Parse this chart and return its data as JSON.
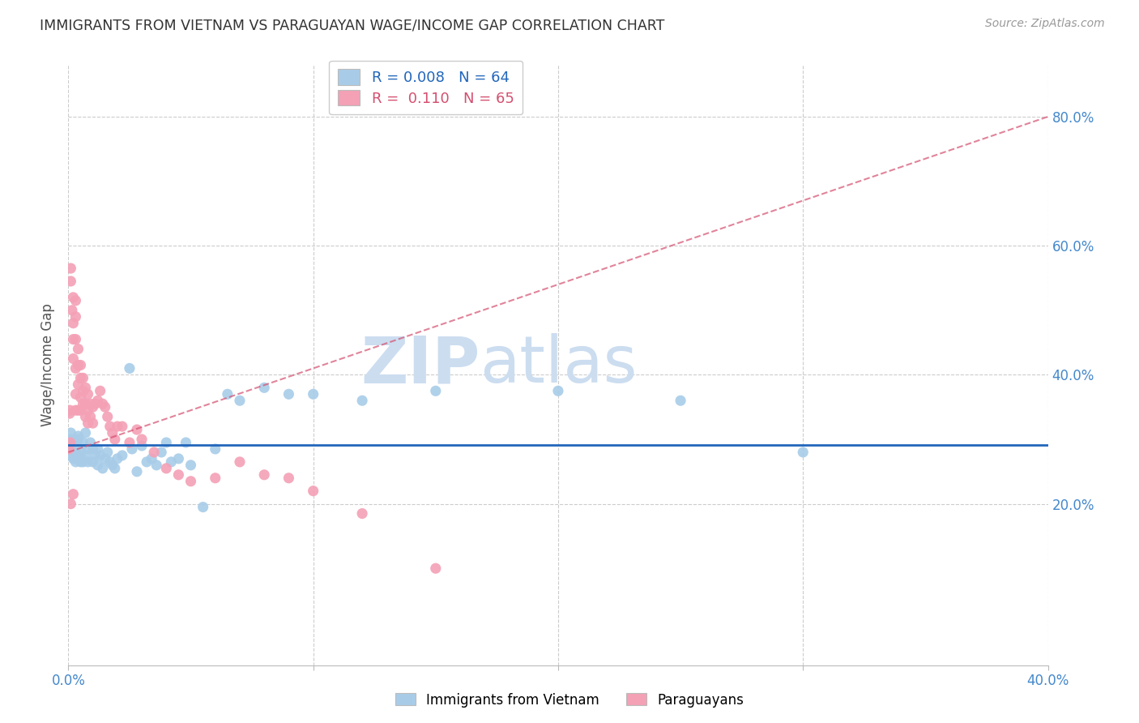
{
  "title": "IMMIGRANTS FROM VIETNAM VS PARAGUAYAN WAGE/INCOME GAP CORRELATION CHART",
  "source": "Source: ZipAtlas.com",
  "ylabel": "Wage/Income Gap",
  "xlim": [
    0.0,
    0.4
  ],
  "ylim": [
    -0.05,
    0.88
  ],
  "yticks": [
    0.2,
    0.4,
    0.6,
    0.8
  ],
  "ytick_labels": [
    "20.0%",
    "40.0%",
    "60.0%",
    "80.0%"
  ],
  "xticks": [
    0.0,
    0.1,
    0.2,
    0.3,
    0.4
  ],
  "xtick_labels": [
    "0.0%",
    "",
    "",
    "",
    "40.0%"
  ],
  "series": [
    {
      "label": "Immigrants from Vietnam",
      "color": "#a8cce8",
      "R": 0.008,
      "N": 64,
      "line_color": "#2266bb",
      "line_style": "solid",
      "x": [
        0.0005,
        0.0008,
        0.001,
        0.001,
        0.0015,
        0.002,
        0.002,
        0.0025,
        0.003,
        0.003,
        0.003,
        0.003,
        0.004,
        0.004,
        0.004,
        0.005,
        0.005,
        0.005,
        0.006,
        0.006,
        0.007,
        0.007,
        0.008,
        0.008,
        0.009,
        0.01,
        0.01,
        0.011,
        0.012,
        0.012,
        0.013,
        0.014,
        0.015,
        0.016,
        0.017,
        0.018,
        0.019,
        0.02,
        0.022,
        0.025,
        0.026,
        0.028,
        0.03,
        0.032,
        0.034,
        0.036,
        0.038,
        0.04,
        0.042,
        0.045,
        0.048,
        0.05,
        0.055,
        0.06,
        0.065,
        0.07,
        0.08,
        0.09,
        0.1,
        0.12,
        0.15,
        0.2,
        0.25,
        0.3
      ],
      "y": [
        0.295,
        0.285,
        0.31,
        0.275,
        0.3,
        0.28,
        0.27,
        0.29,
        0.295,
        0.28,
        0.265,
        0.27,
        0.305,
        0.27,
        0.3,
        0.275,
        0.265,
        0.285,
        0.295,
        0.265,
        0.31,
        0.275,
        0.285,
        0.265,
        0.295,
        0.285,
        0.265,
        0.275,
        0.285,
        0.26,
        0.275,
        0.255,
        0.27,
        0.28,
        0.265,
        0.26,
        0.255,
        0.27,
        0.275,
        0.41,
        0.285,
        0.25,
        0.29,
        0.265,
        0.27,
        0.26,
        0.28,
        0.295,
        0.265,
        0.27,
        0.295,
        0.26,
        0.195,
        0.285,
        0.37,
        0.36,
        0.38,
        0.37,
        0.37,
        0.36,
        0.375,
        0.375,
        0.36,
        0.28
      ]
    },
    {
      "label": "Paraguayans",
      "color": "#f4a0b5",
      "R": 0.11,
      "N": 65,
      "line_color": "#d45070",
      "line_style": "dashed",
      "x": [
        0.0003,
        0.0005,
        0.0007,
        0.0008,
        0.001,
        0.001,
        0.001,
        0.0015,
        0.002,
        0.002,
        0.002,
        0.002,
        0.002,
        0.003,
        0.003,
        0.003,
        0.003,
        0.003,
        0.003,
        0.004,
        0.004,
        0.004,
        0.004,
        0.005,
        0.005,
        0.005,
        0.005,
        0.006,
        0.006,
        0.006,
        0.007,
        0.007,
        0.007,
        0.008,
        0.008,
        0.008,
        0.009,
        0.009,
        0.01,
        0.01,
        0.011,
        0.012,
        0.013,
        0.014,
        0.015,
        0.016,
        0.017,
        0.018,
        0.019,
        0.02,
        0.022,
        0.025,
        0.028,
        0.03,
        0.035,
        0.04,
        0.045,
        0.05,
        0.06,
        0.07,
        0.08,
        0.09,
        0.1,
        0.12,
        0.15
      ],
      "y": [
        0.285,
        0.34,
        0.345,
        0.295,
        0.565,
        0.545,
        0.2,
        0.5,
        0.52,
        0.48,
        0.455,
        0.425,
        0.215,
        0.515,
        0.49,
        0.455,
        0.41,
        0.37,
        0.345,
        0.44,
        0.415,
        0.385,
        0.345,
        0.415,
        0.395,
        0.365,
        0.345,
        0.395,
        0.375,
        0.355,
        0.38,
        0.355,
        0.335,
        0.37,
        0.345,
        0.325,
        0.355,
        0.335,
        0.35,
        0.325,
        0.355,
        0.36,
        0.375,
        0.355,
        0.35,
        0.335,
        0.32,
        0.31,
        0.3,
        0.32,
        0.32,
        0.295,
        0.315,
        0.3,
        0.28,
        0.255,
        0.245,
        0.235,
        0.24,
        0.265,
        0.245,
        0.24,
        0.22,
        0.185,
        0.1
      ]
    }
  ],
  "watermark_zip": "ZIP",
  "watermark_atlas": "atlas",
  "watermark_color": "#ccddf0",
  "background_color": "#ffffff",
  "grid_color": "#cccccc",
  "title_color": "#333333",
  "axis_label_color": "#555555",
  "tick_label_color": "#4488cc"
}
